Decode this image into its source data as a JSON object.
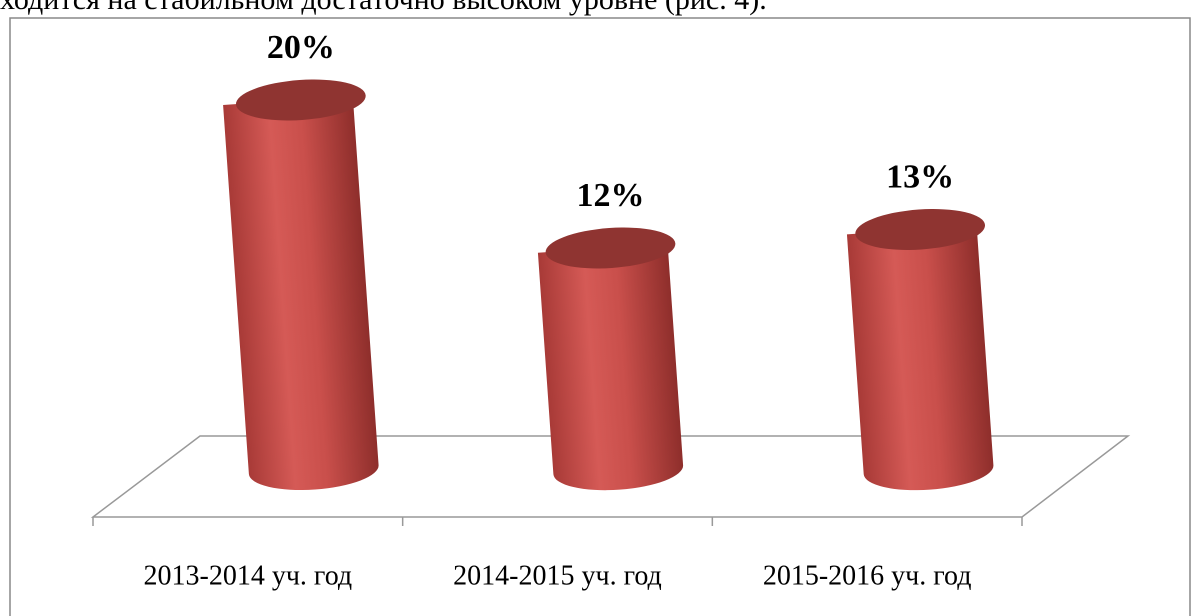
{
  "text_above": "ходится на стабильном достаточно высоком уровне (рис. 4).",
  "chart_data": {
    "type": "bar3d-cylinder",
    "categories": [
      "2013-2014 уч. год",
      "2014-2015 уч. год",
      "2015-2016 уч. год"
    ],
    "values": [
      20,
      12,
      13
    ],
    "value_labels": [
      "20%",
      "12%",
      "13%"
    ],
    "color": "#c0504d"
  }
}
